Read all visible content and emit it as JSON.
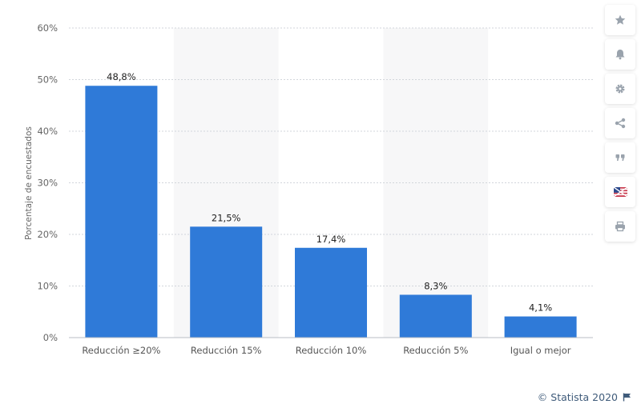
{
  "chart_data": {
    "type": "bar",
    "categories": [
      "Reducción ≥20%",
      "Reducción 15%",
      "Reducción 10%",
      "Reducción 5%",
      "Igual o mejor"
    ],
    "values": [
      48.8,
      21.5,
      17.4,
      8.3,
      4.1
    ],
    "value_labels": [
      "48,8%",
      "21,5%",
      "17,4%",
      "8,3%",
      "4,1%"
    ],
    "ylabel": "Porcentaje de encuestados",
    "xlabel": "",
    "ylim": [
      0,
      60
    ],
    "yticks": [
      0,
      10,
      20,
      30,
      40,
      50,
      60
    ],
    "ytick_labels": [
      "0%",
      "10%",
      "20%",
      "30%",
      "40%",
      "50%",
      "60%"
    ],
    "grid": true,
    "bar_color": "#2f7ad8",
    "band_color": "#f7f7f8"
  },
  "toolbar": {
    "buttons": [
      {
        "name": "favorite-button",
        "icon": "star-icon"
      },
      {
        "name": "notification-button",
        "icon": "bell-icon"
      },
      {
        "name": "settings-button",
        "icon": "gear-icon"
      },
      {
        "name": "share-button",
        "icon": "share-icon"
      },
      {
        "name": "cite-button",
        "icon": "quote-icon"
      },
      {
        "name": "language-button",
        "icon": "flag-icon"
      },
      {
        "name": "print-button",
        "icon": "printer-icon"
      }
    ]
  },
  "credit": {
    "text": "© Statista 2020",
    "icon": "flag-icon"
  }
}
